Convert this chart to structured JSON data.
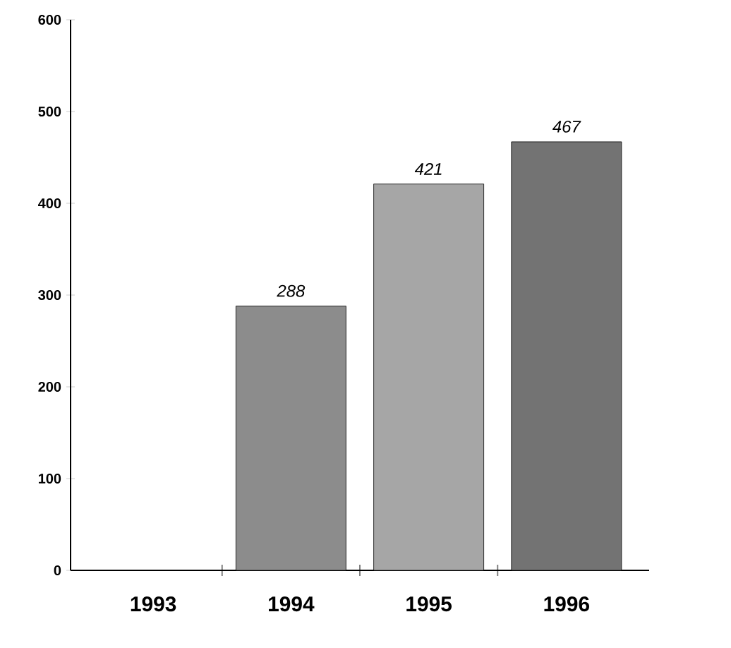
{
  "chart_data": {
    "type": "bar",
    "categories": [
      "1993",
      "1994",
      "1995",
      "1996"
    ],
    "values": [
      0,
      288,
      421,
      467
    ],
    "colors": [
      "#808080",
      "#8c8c8c",
      "#a6a6a6",
      "#737373"
    ],
    "value_labels": [
      null,
      "288",
      "421",
      "467"
    ],
    "ylim": [
      0,
      600
    ],
    "yticks": [
      0,
      100,
      200,
      300,
      400,
      500,
      600
    ]
  }
}
